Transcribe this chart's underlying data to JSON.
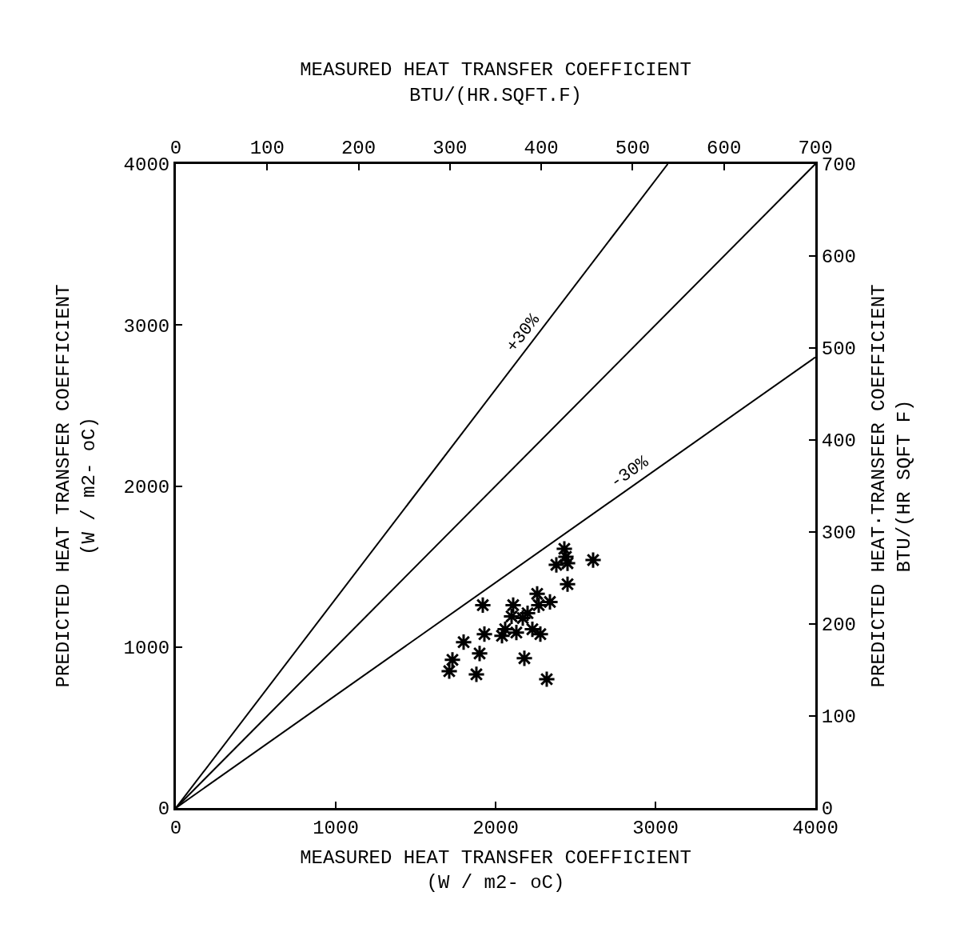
{
  "chart_data": {
    "type": "scatter",
    "xlabel": "MEASURED HEAT TRANSFER COEFFICIENT\n(W / m2- oC)",
    "ylabel": "PREDICTED HEAT TRANSFER COEFFICIENT\n(W / m2- oC)",
    "x2label": "MEASURED HEAT TRANSFER COEFFICIENT\nBTU/(HR.SQFT.F)",
    "y2label": "PREDICTED HEAT·TRANSFER COEFFICIENT\nBTU/(HR SQFT F)",
    "xlim": [
      0,
      4000
    ],
    "ylim": [
      0,
      4000
    ],
    "xticks": [
      0,
      1000,
      2000,
      3000,
      4000
    ],
    "yticks": [
      0,
      1000,
      2000,
      3000,
      4000
    ],
    "x2lim": [
      0,
      700
    ],
    "x2ticks": [
      0,
      100,
      200,
      300,
      400,
      500,
      600,
      700
    ],
    "y2lim": [
      0,
      700
    ],
    "y2ticks": [
      0,
      100,
      200,
      300,
      400,
      500,
      600,
      700
    ],
    "grid": false,
    "legend": false,
    "marker": "cross",
    "series": [
      {
        "color": "#000000",
        "x": [
          1710,
          1730,
          1800,
          1880,
          1900,
          1930,
          1920,
          2040,
          2110,
          2130,
          2100,
          2170,
          2180,
          2230,
          2280,
          2260,
          2340,
          2270,
          2320,
          2430,
          2380,
          2450,
          2450,
          2610,
          2200,
          2440,
          2060
        ],
        "values": [
          850,
          920,
          1030,
          830,
          960,
          1080,
          1260,
          1070,
          1260,
          1090,
          1190,
          1180,
          930,
          1110,
          1080,
          1330,
          1280,
          1260,
          800,
          1610,
          1510,
          1520,
          1390,
          1540,
          1210,
          1560,
          1110
        ]
      },
      {
        "type": "line",
        "name": "+30%",
        "color": "#000000",
        "marker": "none",
        "x": [
          0,
          3077
        ],
        "values": [
          0,
          4000
        ]
      },
      {
        "type": "line",
        "color": "#000000",
        "marker": "none",
        "x": [
          0,
          4000
        ],
        "values": [
          0,
          4000
        ]
      },
      {
        "type": "line",
        "name": "-30%",
        "color": "#000000",
        "marker": "none",
        "x": [
          0,
          4000
        ],
        "values": [
          0,
          2800
        ]
      }
    ]
  }
}
